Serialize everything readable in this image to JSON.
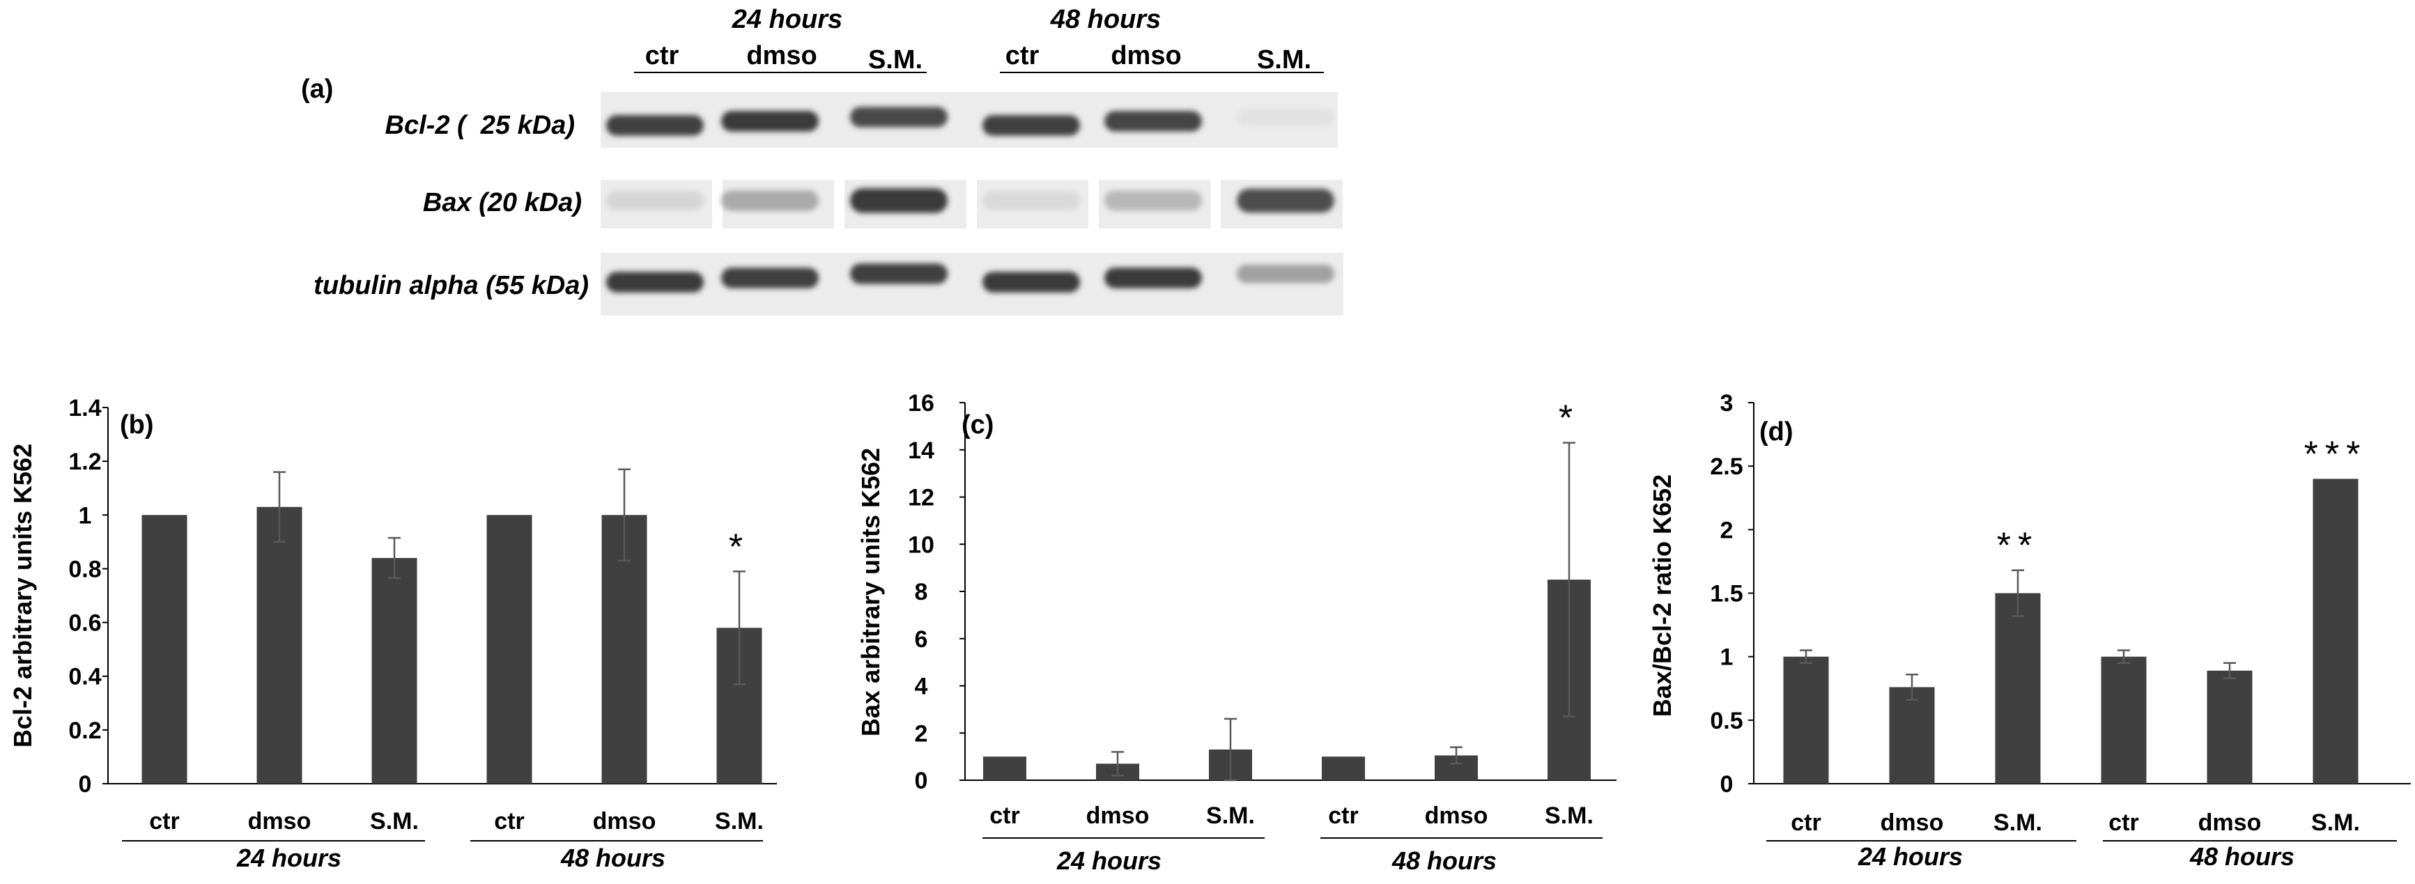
{
  "panel_a": {
    "label": "(a)",
    "group_headers": [
      "24 hours",
      "48 hours"
    ],
    "lane_labels": [
      "ctr",
      "dmso",
      "S.M.",
      "ctr",
      "dmso",
      "S.M."
    ],
    "rows": [
      {
        "label": "Bcl-2 (  25 kDa)",
        "intensities": [
          0.92,
          0.95,
          0.88,
          0.93,
          0.9,
          0.05
        ]
      },
      {
        "label": "Bax (20 kDa)",
        "intensities": [
          0.12,
          0.35,
          0.95,
          0.1,
          0.28,
          0.85
        ]
      },
      {
        "label": "tubulin alpha (55 kDa)",
        "intensities": [
          0.95,
          0.92,
          0.93,
          0.95,
          0.95,
          0.4
        ]
      }
    ]
  },
  "chart_data": [
    {
      "type": "bar",
      "panel": "(b)",
      "ylabel": "Bcl-2 arbitrary units K562",
      "categories": [
        "ctr",
        "dmso",
        "S.M.",
        "ctr",
        "dmso",
        "S.M."
      ],
      "groups": [
        "24 hours",
        "48 hours"
      ],
      "values": [
        1.0,
        1.03,
        0.84,
        1.0,
        1.0,
        0.58
      ],
      "errors": [
        0.0,
        0.13,
        0.075,
        0.0,
        0.17,
        0.21
      ],
      "significance": [
        "",
        "",
        "",
        "",
        "",
        "*"
      ],
      "ylim": [
        0,
        1.4
      ],
      "yticks": [
        "0",
        "0.2",
        "0.4",
        "0.6",
        "0.8",
        "1",
        "1.2",
        "1.4"
      ],
      "bar_color": "#404040"
    },
    {
      "type": "bar",
      "panel": "(c)",
      "ylabel": "Bax arbitrary units K562",
      "categories": [
        "ctr",
        "dmso",
        "S.M.",
        "ctr",
        "dmso",
        "S.M."
      ],
      "groups": [
        "24 hours",
        "48 hours"
      ],
      "values": [
        1.0,
        0.7,
        1.3,
        1.0,
        1.05,
        8.5
      ],
      "errors": [
        0.0,
        0.5,
        1.3,
        0.0,
        0.35,
        5.8
      ],
      "significance": [
        "",
        "",
        "",
        "",
        "",
        "*"
      ],
      "ylim": [
        0,
        16
      ],
      "yticks": [
        "0",
        "2",
        "4",
        "6",
        "8",
        "10",
        "12",
        "14",
        "16"
      ],
      "bar_color": "#404040"
    },
    {
      "type": "bar",
      "panel": "(d)",
      "ylabel": "Bax/Bcl-2 ratio K652",
      "categories": [
        "ctr",
        "dmso",
        "S.M.",
        "ctr",
        "dmso",
        "S.M."
      ],
      "groups": [
        "24 hours",
        "48 hours"
      ],
      "values": [
        1.0,
        0.76,
        1.5,
        1.0,
        0.89,
        2.4
      ],
      "errors": [
        0.05,
        0.1,
        0.18,
        0.05,
        0.06,
        0.0
      ],
      "significance": [
        "",
        "",
        "**",
        "",
        "",
        "***"
      ],
      "ylim": [
        0,
        3
      ],
      "yticks": [
        "0",
        "0.5",
        "1",
        "1.5",
        "2",
        "2.5",
        "3"
      ],
      "bar_color": "#404040"
    }
  ]
}
